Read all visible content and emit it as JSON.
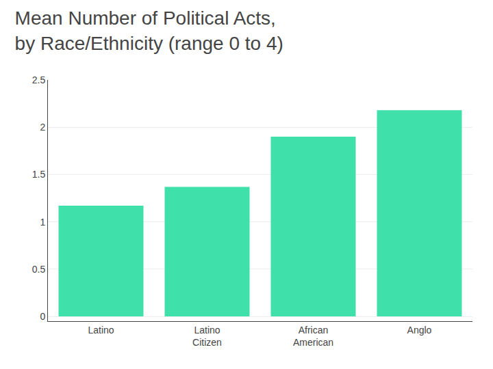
{
  "chart_data": {
    "type": "bar",
    "title": "Mean Number of Political Acts,\nby Race/Ethnicity (range 0 to 4)",
    "categories": [
      "Latino",
      "Latino\nCitizen",
      "African\nAmerican",
      "Anglo"
    ],
    "values": [
      1.17,
      1.37,
      1.9,
      2.18
    ],
    "color": "#40E0AA",
    "ylim": [
      -0.05,
      2.5
    ],
    "yticks": [
      0,
      0.5,
      1,
      1.5,
      2,
      2.5
    ],
    "grid": true
  }
}
